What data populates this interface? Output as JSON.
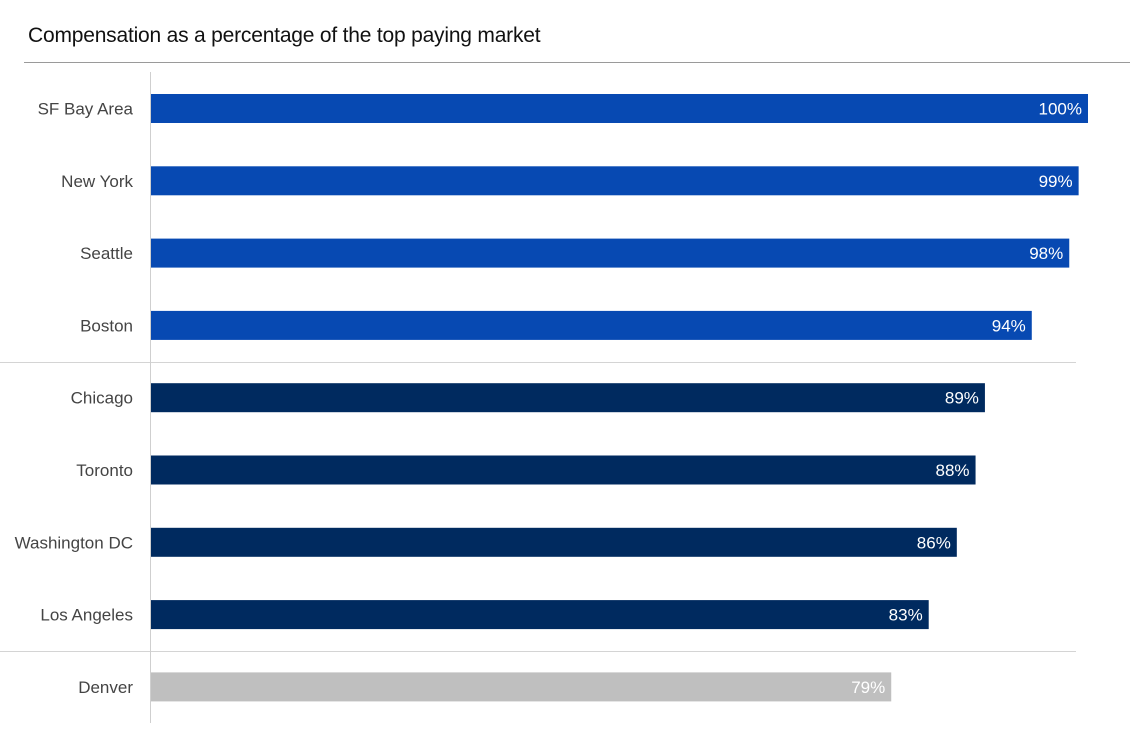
{
  "chart_data": {
    "type": "bar",
    "orientation": "horizontal",
    "title": "Compensation as a percentage of the top paying market",
    "xlabel": "",
    "ylabel": "",
    "xlim": [
      0,
      100
    ],
    "grid": false,
    "categories": [
      "SF Bay Area",
      "New York",
      "Seattle",
      "Boston",
      "Chicago",
      "Toronto",
      "Washington DC",
      "Los Angeles",
      "Denver"
    ],
    "values": [
      100,
      99,
      98,
      94,
      89,
      88,
      86,
      83,
      79
    ],
    "data_labels": [
      "100%",
      "99%",
      "98%",
      "94%",
      "89%",
      "88%",
      "86%",
      "83%",
      "79%"
    ],
    "groups": [
      {
        "categories": [
          "SF Bay Area",
          "New York",
          "Seattle",
          "Boston"
        ],
        "color": "#0749b2"
      },
      {
        "categories": [
          "Chicago",
          "Toronto",
          "Washington DC",
          "Los Angeles"
        ],
        "color": "#002a5f"
      },
      {
        "categories": [
          "Denver"
        ],
        "color": "#bfbfbf"
      }
    ]
  }
}
